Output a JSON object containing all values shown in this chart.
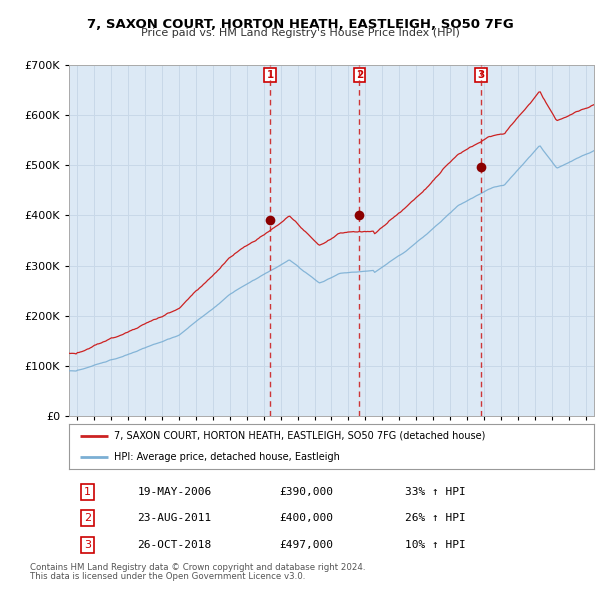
{
  "title": "7, SAXON COURT, HORTON HEATH, EASTLEIGH, SO50 7FG",
  "subtitle": "Price paid vs. HM Land Registry's House Price Index (HPI)",
  "legend_line1": "7, SAXON COURT, HORTON HEATH, EASTLEIGH, SO50 7FG (detached house)",
  "legend_line2": "HPI: Average price, detached house, Eastleigh",
  "footer1": "Contains HM Land Registry data © Crown copyright and database right 2024.",
  "footer2": "This data is licensed under the Open Government Licence v3.0.",
  "transactions": [
    {
      "label": "1",
      "date": "19-MAY-2006",
      "price": 390000,
      "pct": "33%",
      "x_year": 2006.38
    },
    {
      "label": "2",
      "date": "23-AUG-2011",
      "price": 400000,
      "pct": "26%",
      "x_year": 2011.64
    },
    {
      "label": "3",
      "date": "26-OCT-2018",
      "price": 497000,
      "pct": "10%",
      "x_year": 2018.82
    }
  ],
  "table_data": [
    [
      "1",
      "19-MAY-2006",
      "£390,000",
      "33% ↑ HPI"
    ],
    [
      "2",
      "23-AUG-2011",
      "£400,000",
      "26% ↑ HPI"
    ],
    [
      "3",
      "26-OCT-2018",
      "£497,000",
      "10% ↑ HPI"
    ]
  ],
  "hpi_color": "#7bafd4",
  "price_color": "#cc2222",
  "marker_color": "#8b0000",
  "fig_bg": "#ffffff",
  "plot_bg": "#dce9f5",
  "grid_color": "#c8d8e8",
  "vline_color": "#cc2222",
  "ylim": [
    0,
    700000
  ],
  "xlim_start": 1994.5,
  "xlim_end": 2025.5,
  "yticks": [
    0,
    100000,
    200000,
    300000,
    400000,
    500000,
    600000,
    700000
  ]
}
